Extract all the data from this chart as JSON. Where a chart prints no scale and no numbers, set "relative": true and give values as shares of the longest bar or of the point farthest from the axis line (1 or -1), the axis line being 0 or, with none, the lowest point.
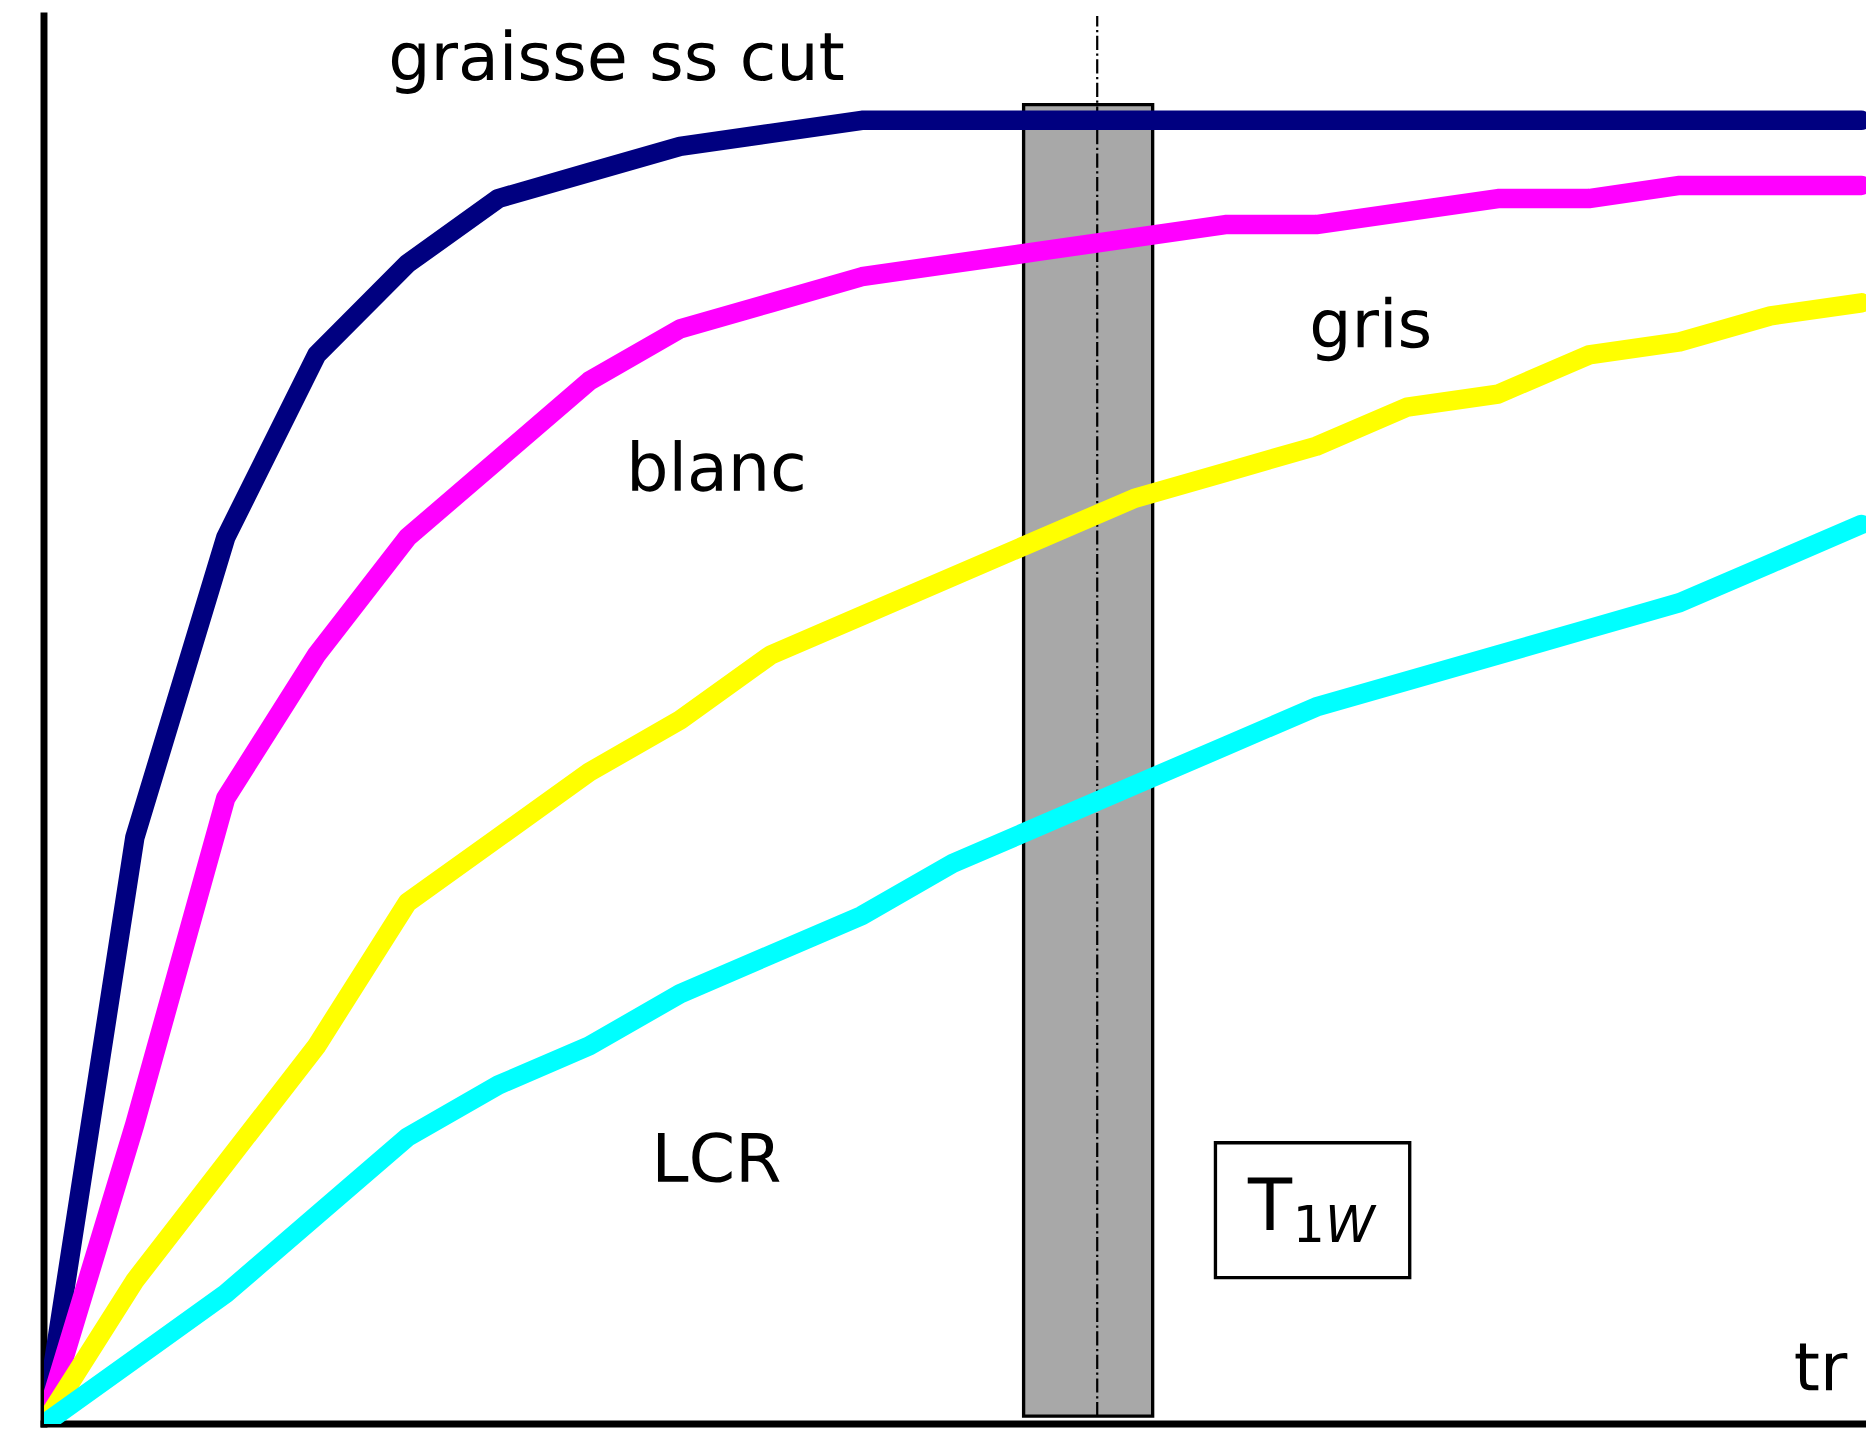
{
  "chart_data": {
    "type": "line",
    "relative": true,
    "categories": [
      null,
      null,
      null,
      null,
      null,
      null,
      null,
      null,
      null,
      null,
      null,
      null,
      null,
      null,
      null,
      null,
      null,
      null,
      null,
      null,
      null
    ],
    "series": [
      {
        "name": "graisse ss cut",
        "color": "#000080",
        "values": [
          0,
          0.45,
          0.68,
          0.82,
          0.89,
          0.94,
          0.96,
          0.98,
          0.99,
          1.0,
          1.0,
          1.0,
          1.0,
          1.0,
          1.0,
          1.0,
          1.0,
          1.0,
          1.0,
          1.0,
          1.0
        ]
      },
      {
        "name": "blanc",
        "color": "#ff00ff",
        "values": [
          0,
          0.23,
          0.48,
          0.59,
          0.68,
          0.74,
          0.8,
          0.84,
          0.86,
          0.88,
          0.89,
          0.9,
          0.91,
          0.92,
          0.92,
          0.93,
          0.94,
          0.94,
          0.95,
          0.95,
          0.95
        ]
      },
      {
        "name": "gris",
        "color": "#ffff00",
        "values": [
          0,
          0.11,
          0.2,
          0.29,
          0.4,
          0.45,
          0.5,
          0.54,
          0.59,
          0.62,
          0.65,
          0.68,
          0.71,
          0.73,
          0.75,
          0.78,
          0.79,
          0.82,
          0.83,
          0.85,
          0.86
        ]
      },
      {
        "name": "LCR",
        "color": "#00ffff",
        "values": [
          0,
          0.05,
          0.1,
          0.16,
          0.22,
          0.26,
          0.29,
          0.33,
          0.36,
          0.39,
          0.43,
          0.46,
          0.49,
          0.52,
          0.55,
          0.57,
          0.59,
          0.61,
          0.63,
          0.66,
          0.69
        ]
      }
    ],
    "annotations": [
      "T$_{1W}$",
      "tr"
    ],
    "legend": false
  }
}
